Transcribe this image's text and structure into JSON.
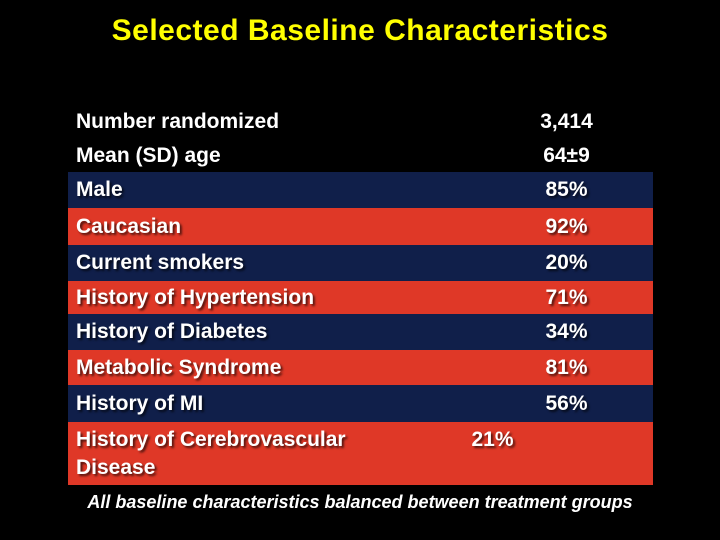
{
  "slide": {
    "title": "Selected Baseline Characteristics",
    "footer": "All baseline characteristics balanced between treatment groups",
    "colors": {
      "background": "#000000",
      "title": "#ffff00",
      "navy_row": "#101f4a",
      "red_row": "#df3827",
      "text": "#ffffff"
    },
    "table": {
      "rows": [
        {
          "label": "Number randomized",
          "value": "3,414",
          "style": "plain"
        },
        {
          "label": "Mean (SD) age",
          "value": "64±9",
          "style": "plain"
        },
        {
          "label": "Male",
          "value": "85%",
          "style": "navy"
        },
        {
          "label": "Caucasian",
          "value": "92%",
          "style": "red"
        },
        {
          "label": "Current smokers",
          "value": "20%",
          "style": "navy"
        },
        {
          "label": "History of Hypertension",
          "value": "71%",
          "style": "red"
        },
        {
          "label": "History of Diabetes",
          "value": "34%",
          "style": "navy"
        },
        {
          "label": "Metabolic Syndrome",
          "value": "81%",
          "style": "red"
        },
        {
          "label": "History of MI",
          "value": "56%",
          "style": "navy"
        },
        {
          "label": "History of Cerebrovascular Disease",
          "value": "21%",
          "style": "red"
        }
      ]
    }
  }
}
